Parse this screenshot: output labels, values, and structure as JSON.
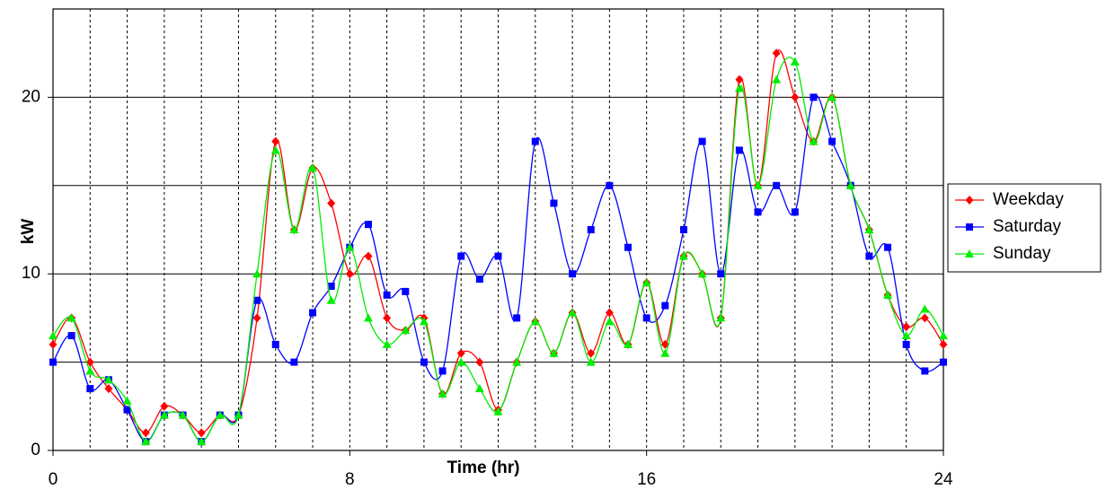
{
  "chart_data": {
    "type": "line",
    "x_label": "Time (hr)",
    "y_label": "kW",
    "x": [
      0,
      0.5,
      1,
      1.5,
      2,
      2.5,
      3,
      3.5,
      4,
      4.5,
      5,
      5.5,
      6,
      6.5,
      7,
      7.5,
      8,
      8.5,
      9,
      9.5,
      10,
      10.5,
      11,
      11.5,
      12,
      12.5,
      13,
      13.5,
      14,
      14.5,
      15,
      15.5,
      16,
      16.5,
      17,
      17.5,
      18,
      18.5,
      19,
      19.5,
      20,
      20.5,
      21,
      21.5,
      22,
      22.5,
      23,
      23.5,
      24
    ],
    "series": [
      {
        "name": "Weekday",
        "color": "#ff0000",
        "marker": "diamond",
        "values": [
          6,
          7.5,
          5,
          3.5,
          2.3,
          1,
          2.5,
          2,
          1,
          2,
          2,
          7.5,
          17.5,
          12.5,
          16,
          14,
          10,
          11,
          7.5,
          6.8,
          7.5,
          3.2,
          5.5,
          5,
          2.3,
          5,
          7.3,
          5.5,
          7.8,
          5.5,
          7.8,
          6,
          9.5,
          6,
          11,
          10,
          7.5,
          21,
          15,
          22.5,
          20,
          17.5,
          20,
          15,
          12.5,
          8.8,
          7,
          7.5,
          6
        ]
      },
      {
        "name": "Saturday",
        "color": "#0000ff",
        "marker": "square",
        "values": [
          5,
          6.5,
          3.5,
          4,
          2.3,
          0.5,
          2,
          2,
          0.5,
          2,
          2,
          8.5,
          6,
          5,
          7.8,
          9.3,
          11.5,
          12.8,
          8.8,
          9,
          5,
          4.5,
          11,
          9.7,
          11,
          7.5,
          17.5,
          14,
          10,
          12.5,
          15,
          11.5,
          7.5,
          8.2,
          12.5,
          17.5,
          10,
          17,
          13.5,
          15,
          13.5,
          20,
          17.5,
          15,
          11,
          11.5,
          6,
          4.5,
          5
        ]
      },
      {
        "name": "Sunday",
        "color": "#00ee00",
        "marker": "triangle",
        "values": [
          6.5,
          7.5,
          4.5,
          4,
          2.8,
          0.5,
          2,
          2,
          0.5,
          2,
          2,
          10,
          17,
          12.5,
          16,
          8.5,
          11.5,
          7.5,
          6,
          6.8,
          7.3,
          3.2,
          5,
          3.5,
          2.2,
          5,
          7.3,
          5.5,
          7.8,
          5,
          7.3,
          6,
          9.5,
          5.5,
          11,
          10,
          7.5,
          20.5,
          15,
          21,
          22,
          17.5,
          20,
          15,
          12.5,
          8.8,
          6.5,
          8,
          6.5
        ]
      }
    ],
    "xlim": [
      0,
      24
    ],
    "xticks": [
      0,
      8,
      16,
      24
    ],
    "x_grid": [
      1,
      2,
      3,
      4,
      5,
      6,
      7,
      8,
      9,
      10,
      11,
      12,
      13,
      14,
      15,
      16,
      17,
      18,
      19,
      20,
      21,
      22,
      23
    ],
    "ylim": [
      0,
      25
    ],
    "yticks": [
      0,
      10,
      20
    ],
    "y_grid": [
      5,
      10,
      15,
      20
    ],
    "smooth": true,
    "legend": "right"
  }
}
